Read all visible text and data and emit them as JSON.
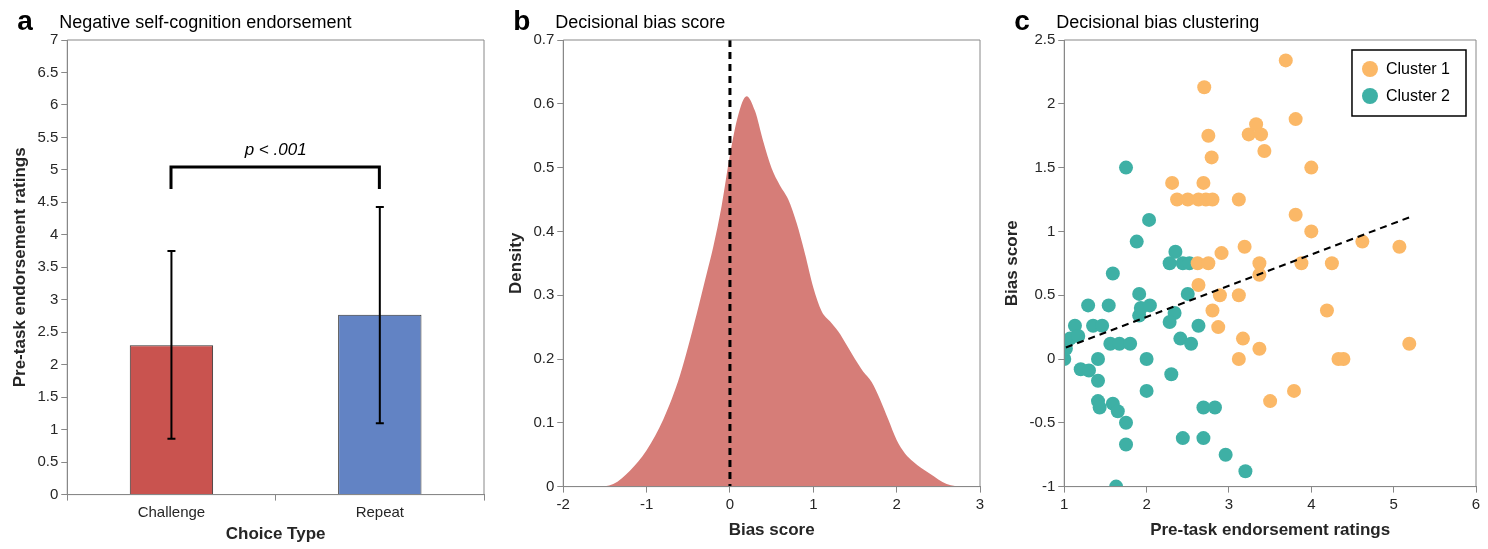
{
  "chart_data": [
    {
      "type": "bar",
      "title": "Negative self-cognition endorsement",
      "xlabel": "Choice Type",
      "ylabel": "Pre-task endorsement ratings",
      "categories": [
        "Challenge",
        "Repeat"
      ],
      "values": [
        2.3,
        2.77
      ],
      "colors": [
        "#c9534f",
        "#6283c4"
      ],
      "errors": [
        [
          0.86,
          3.75
        ],
        [
          1.1,
          4.43
        ]
      ],
      "ylim": [
        0,
        7
      ],
      "yticks": [
        0,
        0.5,
        1,
        1.5,
        2,
        2.5,
        3,
        3.5,
        4,
        4.5,
        5,
        5.5,
        6,
        6.5,
        7
      ],
      "annotations": [
        "a",
        "p < .001"
      ]
    },
    {
      "type": "area",
      "title": "Decisional bias score",
      "xlabel": "Bias score",
      "ylabel": "Density",
      "x": [
        -1.8,
        -1.6,
        -1.4,
        -1.2,
        -1.0,
        -0.8,
        -0.6,
        -0.4,
        -0.3,
        -0.2,
        -0.1,
        0,
        0.1,
        0.2,
        0.3,
        0.4,
        0.5,
        0.6,
        0.7,
        0.8,
        0.9,
        1.0,
        1.1,
        1.2,
        1.3,
        1.4,
        1.5,
        1.6,
        1.7,
        1.8,
        1.9,
        2.0,
        2.1,
        2.2,
        2.4,
        2.6,
        2.8,
        2.9
      ],
      "series": [
        {
          "color": "#d67d78",
          "values": [
            0,
            0,
            0.004,
            0.025,
            0.057,
            0.105,
            0.174,
            0.27,
            0.323,
            0.376,
            0.44,
            0.52,
            0.583,
            0.612,
            0.589,
            0.541,
            0.499,
            0.472,
            0.45,
            0.413,
            0.365,
            0.312,
            0.275,
            0.259,
            0.243,
            0.222,
            0.2,
            0.18,
            0.164,
            0.137,
            0.105,
            0.073,
            0.052,
            0.039,
            0.02,
            0.004,
            0,
            0
          ]
        }
      ],
      "xlim": [
        -2,
        3
      ],
      "xticks": [
        -2,
        -1,
        0,
        1,
        2,
        3
      ],
      "ylim": [
        0,
        0.7
      ],
      "yticks": [
        0,
        0.1,
        0.2,
        0.3,
        0.4,
        0.5,
        0.6,
        0.7
      ],
      "ref_lines": [
        {
          "axis": "x",
          "value": 0,
          "color": "#000000",
          "line_style": "dashed"
        }
      ],
      "annotations": [
        "b"
      ]
    },
    {
      "type": "scatter",
      "title": "Decisional bias clustering",
      "xlabel": "Pre-task endorsement ratings",
      "ylabel": "Bias score",
      "marker": "circle",
      "legend": "top right",
      "xlim": [
        1,
        6
      ],
      "xticks": [
        1,
        2,
        3,
        4,
        5,
        6
      ],
      "ylim": [
        -1,
        2.5
      ],
      "yticks": [
        -1,
        -0.5,
        0,
        0.5,
        1,
        1.5,
        2,
        2.5
      ],
      "annotations": [
        "c"
      ],
      "series": [
        {
          "name": "Cluster 1",
          "color": "#fbb867",
          "x": [
            2.7,
            2.75,
            2.79,
            2.31,
            2.69,
            2.37,
            2.5,
            2.63,
            2.72,
            2.8,
            3.12,
            2.91,
            3.19,
            2.62,
            2.75,
            2.63,
            2.8,
            2.87,
            2.89,
            3.12,
            3.17,
            3.12,
            3.24,
            3.33,
            3.39,
            3.43,
            3.69,
            3.81,
            4.0,
            3.81,
            4.0,
            4.62,
            5.07,
            3.37,
            3.88,
            4.25,
            3.37,
            4.19,
            3.37,
            4.33,
            4.39,
            5.19,
            3.79,
            3.5
          ],
          "values": [
            2.13,
            1.75,
            1.58,
            1.38,
            1.38,
            1.25,
            1.25,
            1.25,
            1.25,
            1.25,
            1.25,
            0.83,
            0.88,
            0.75,
            0.75,
            0.58,
            0.38,
            0.25,
            0.5,
            0.5,
            0.16,
            0,
            1.76,
            1.84,
            1.76,
            1.63,
            2.34,
            1.88,
            1.5,
            1.13,
            1.0,
            0.92,
            0.88,
            0.75,
            0.75,
            0.75,
            0.66,
            0.38,
            0.08,
            0,
            0,
            0.12,
            -0.25,
            -0.33
          ]
        },
        {
          "name": "Cluster 2",
          "color": "#3eb0a5",
          "x": [
            1.0,
            1.02,
            1.07,
            1.13,
            1.17,
            1.2,
            1.29,
            1.3,
            1.35,
            1.41,
            1.41,
            1.41,
            1.43,
            1.46,
            1.54,
            1.56,
            1.59,
            1.59,
            1.63,
            1.65,
            1.67,
            1.75,
            1.75,
            1.75,
            1.8,
            1.88,
            1.91,
            1.91,
            1.93,
            2.04,
            2.03,
            2.0,
            2.0,
            2.3,
            2.28,
            2.35,
            2.34,
            2.28,
            2.41,
            2.44,
            2.44,
            2.5,
            2.52,
            2.54,
            2.63,
            2.69,
            2.69,
            2.83,
            2.96,
            3.2
          ],
          "values": [
            0,
            0.08,
            0.16,
            0.26,
            0.18,
            -0.08,
            0.42,
            -0.09,
            0.26,
            0,
            -0.17,
            -0.33,
            -0.38,
            0.26,
            0.42,
            0.12,
            0.67,
            -0.35,
            -1.0,
            -0.41,
            0.12,
            -0.5,
            1.5,
            -0.67,
            0.12,
            0.92,
            0.51,
            0.34,
            0.4,
            0.42,
            1.09,
            0,
            -0.25,
            -0.12,
            0.75,
            0.84,
            0.36,
            0.29,
            0.16,
            0.75,
            -0.62,
            0.51,
            0.75,
            0.12,
            0.26,
            -0.38,
            -0.62,
            -0.38,
            -0.75,
            -0.88
          ]
        },
        {
          "type": "line",
          "color": "#000000",
          "line_style": "dashed",
          "marker": "none",
          "x": [
            1.02,
            5.19
          ],
          "values": [
            0.09,
            1.11
          ]
        }
      ]
    }
  ]
}
